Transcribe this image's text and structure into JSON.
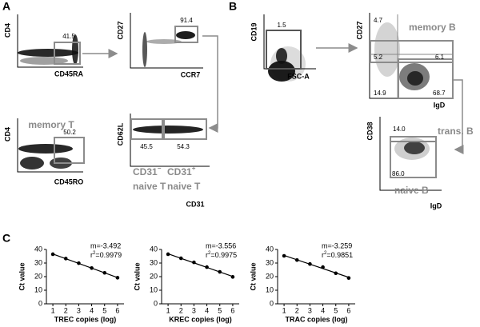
{
  "panel_labels": [
    "A",
    "B",
    "C"
  ],
  "panel_a": {
    "plots": [
      {
        "y_label": "CD4",
        "x_label": "CD45RA",
        "gate": 41.5
      },
      {
        "y_label": "CD27",
        "x_label": "CCR7",
        "gate": 91.4
      },
      {
        "y_label": "CD4",
        "x_label": "CD45RO",
        "gate": 50.2,
        "population": "memory T"
      },
      {
        "y_label": "CD62L",
        "x_label": "CD31",
        "gates": [
          45.5,
          54.3
        ],
        "populations": [
          [
            "CD31",
            "−",
            "naive T"
          ],
          [
            "CD31",
            "+",
            "naive T"
          ]
        ]
      }
    ]
  },
  "panel_b": {
    "plots": [
      {
        "y_label": "CD19",
        "x_label": "FSC-A",
        "gate": 1.5
      },
      {
        "y_label": "CD27",
        "x_label": "IgD",
        "population": "memory B",
        "gates": [
          4.7,
          5.2,
          6.1,
          14.9,
          68.7
        ]
      },
      {
        "y_label": "CD38",
        "x_label": "IgD",
        "gates": [
          "14.0",
          "86.0"
        ],
        "populations": [
          "trans. B",
          "naive B"
        ]
      }
    ]
  },
  "chart_data": [
    {
      "type": "scatter",
      "x_label": "TREC copies (log)",
      "y_label": "Ct value",
      "color": "#000000",
      "x": [
        1,
        2,
        3,
        4,
        5,
        6
      ],
      "values": [
        36.5,
        33.3,
        29.9,
        26.3,
        22.8,
        19.2
      ],
      "xlim": [
        0.5,
        6.5
      ],
      "ylim": [
        0,
        40
      ],
      "xticks": [
        1,
        2,
        3,
        4,
        5,
        6
      ],
      "yticks": [
        0,
        10,
        20,
        30,
        40
      ],
      "fit_line": true,
      "annotations": [
        "m=-3.492",
        [
          "r",
          "2",
          "=0.9979"
        ]
      ]
    },
    {
      "type": "scatter",
      "x_label": "KREC copies (log)",
      "y_label": "Ct value",
      "color": "#000000",
      "x": [
        1,
        2,
        3,
        4,
        5,
        6
      ],
      "values": [
        36.5,
        33.5,
        30.5,
        27.0,
        23.5,
        19.8
      ],
      "xlim": [
        0.5,
        6.5
      ],
      "ylim": [
        0,
        40
      ],
      "xticks": [
        1,
        2,
        3,
        4,
        5,
        6
      ],
      "yticks": [
        0,
        10,
        20,
        30,
        40
      ],
      "fit_line": true,
      "annotations": [
        "m=-3.556",
        [
          "r",
          "2",
          "=0.9975"
        ]
      ]
    },
    {
      "type": "scatter",
      "x_label": "TRAC copies (log)",
      "y_label": "Ct value",
      "color": "#000000",
      "x": [
        1,
        2,
        3,
        4,
        5,
        6
      ],
      "values": [
        35.3,
        32.2,
        29.3,
        27.0,
        22.5,
        19.0
      ],
      "xlim": [
        0.5,
        6.5
      ],
      "ylim": [
        0,
        40
      ],
      "xticks": [
        1,
        2,
        3,
        4,
        5,
        6
      ],
      "yticks": [
        0,
        10,
        20,
        30,
        40
      ],
      "fit_line": true,
      "annotations": [
        "m=-3.259",
        [
          "r",
          "2",
          "=0.9851"
        ]
      ]
    }
  ]
}
